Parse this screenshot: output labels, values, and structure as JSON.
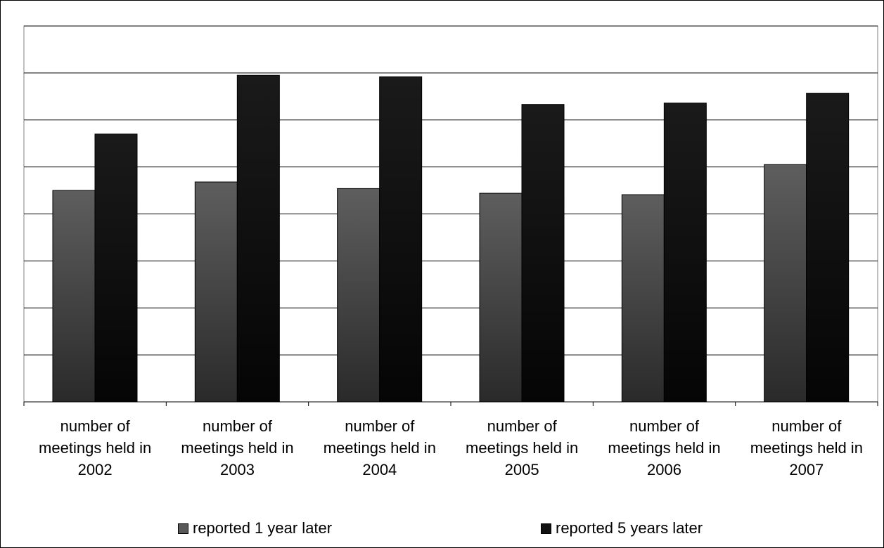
{
  "chart_data": {
    "type": "bar",
    "categories": [
      "number of meetings held in 2002",
      "number of meetings held in 2003",
      "number of meetings held in 2004",
      "number of meetings held in 2005",
      "number of meetings held in 2006",
      "number of meetings held in 2007"
    ],
    "category_lines": [
      [
        "number of",
        "meetings held in",
        "2002"
      ],
      [
        "number of",
        "meetings held in",
        "2003"
      ],
      [
        "number of",
        "meetings held in",
        "2004"
      ],
      [
        "number of",
        "meetings held in",
        "2005"
      ],
      [
        "number of",
        "meetings held in",
        "2006"
      ],
      [
        "number of",
        "meetings held in",
        "2007"
      ]
    ],
    "series": [
      {
        "name": "reported 1 year later",
        "values": [
          4.5,
          4.68,
          4.54,
          4.44,
          4.41,
          5.05
        ],
        "color": "#595959"
      },
      {
        "name": "reported 5 years later",
        "values": [
          5.7,
          6.95,
          6.92,
          6.33,
          6.36,
          6.57
        ],
        "color": "#111111"
      }
    ],
    "ylim": [
      0,
      8
    ],
    "grid": true,
    "legend_position": "bottom",
    "title": "",
    "xlabel": "",
    "ylabel": ""
  }
}
